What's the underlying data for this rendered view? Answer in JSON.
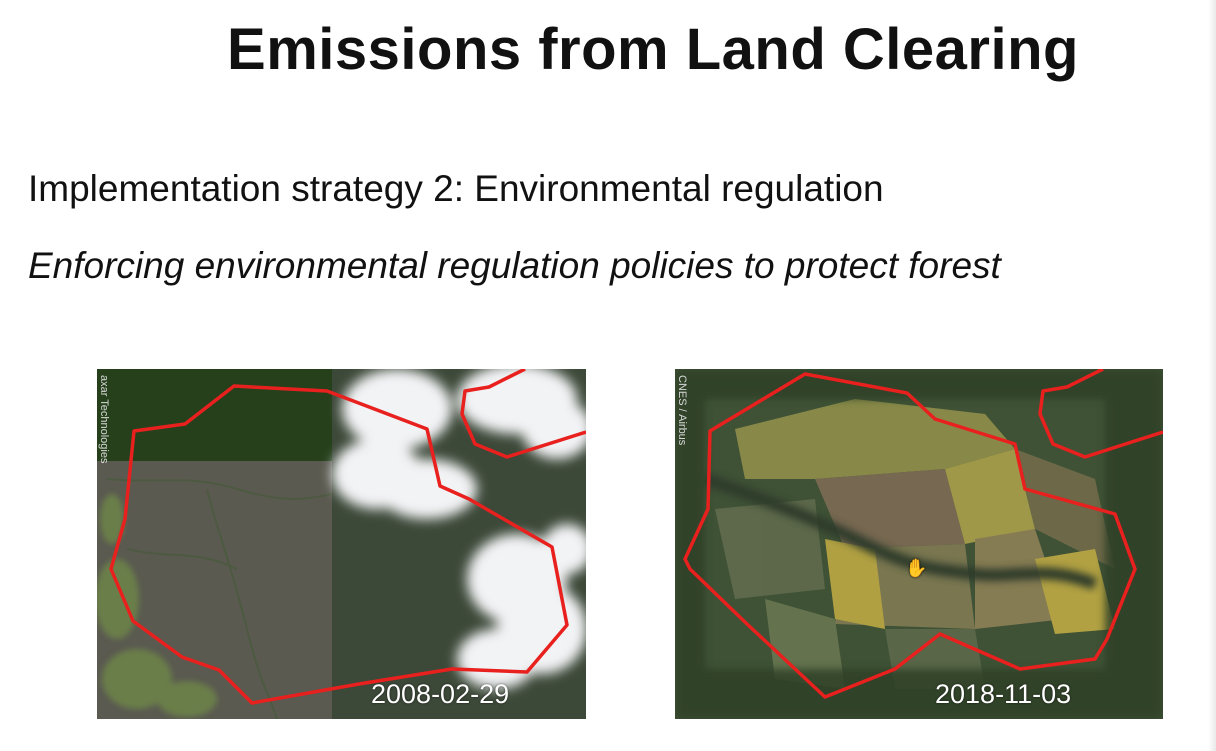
{
  "slide": {
    "title": "Emissions from Land Clearing",
    "subtitle": "Implementation strategy 2: Environmental regulation",
    "tagline": "Enforcing environmental regulation policies to protect forest"
  },
  "images": [
    {
      "date": "2008-02-29",
      "credit": "axar Technologies"
    },
    {
      "date": "2018-11-03",
      "credit": "CNES / Airbus"
    }
  ],
  "colors": {
    "boundary_line": "#e8201e",
    "forest_dark": "#2f3a2a",
    "cloud": "#f1f2f4",
    "field_yellow": "#b5a544"
  },
  "icons": {
    "cursor": "hand-cursor-icon"
  }
}
